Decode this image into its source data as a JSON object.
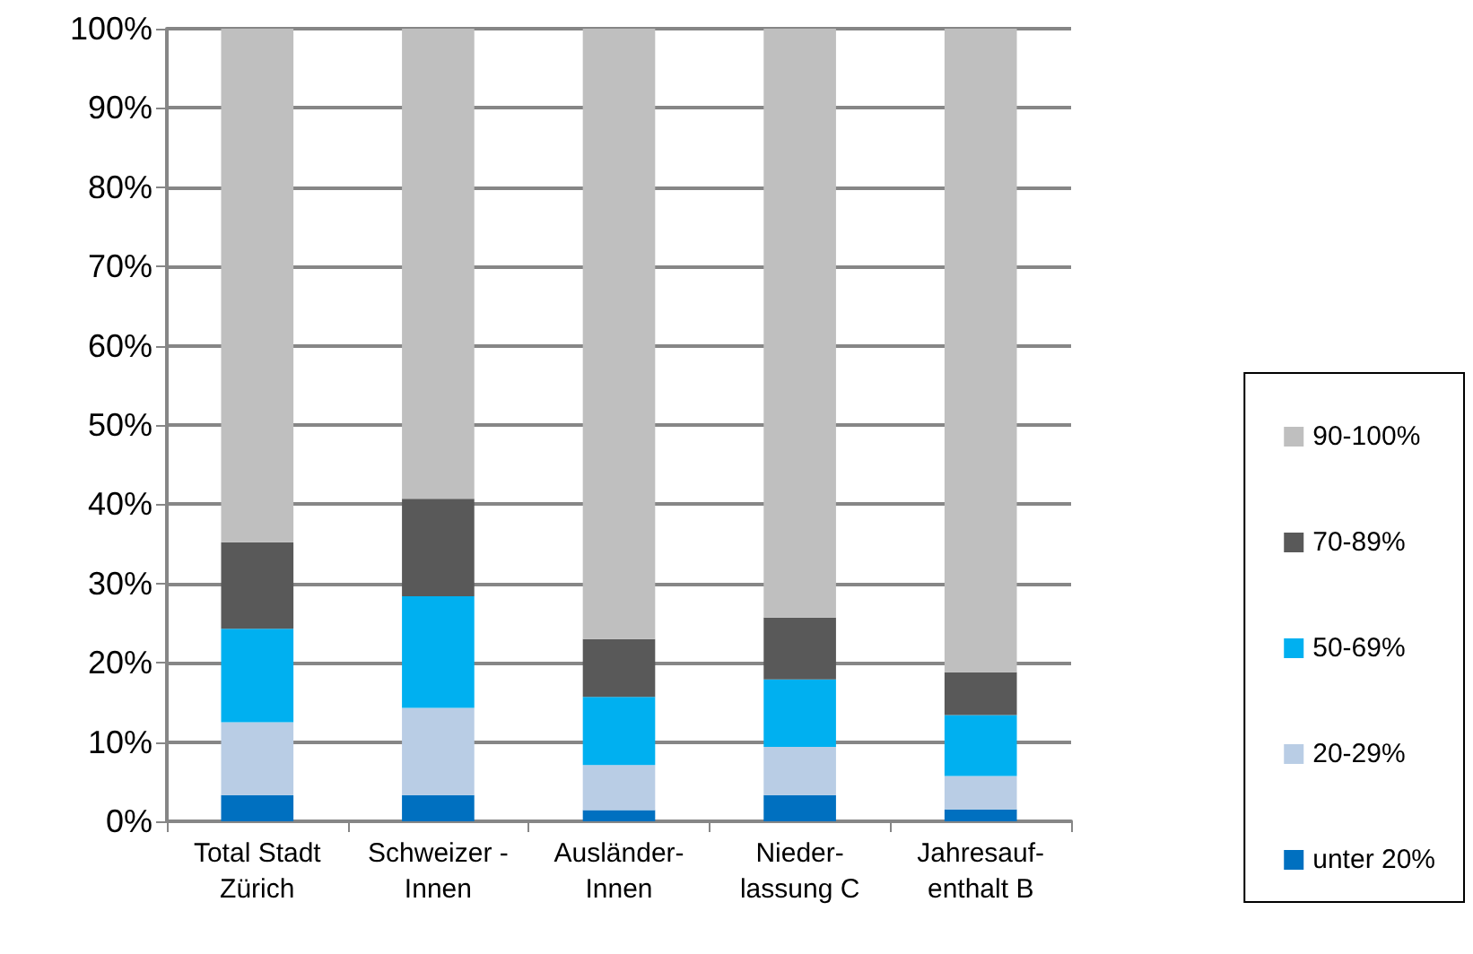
{
  "chart_data": {
    "type": "bar",
    "stacked": true,
    "categories": [
      "Total Stadt\nZürich",
      "Schweizer -\nInnen",
      "Ausländer-\nInnen",
      "Nieder-\nlassung C",
      "Jahresauf-\nenthalt B"
    ],
    "series": [
      {
        "name": "unter 20%",
        "color": "#0070c0",
        "values": [
          3.3,
          3.3,
          1.4,
          3.3,
          1.5
        ]
      },
      {
        "name": "20-29%",
        "color": "#b9cde5",
        "values": [
          9.2,
          11.0,
          5.7,
          6.1,
          4.2
        ]
      },
      {
        "name": "50-69%",
        "color": "#00b0f0",
        "values": [
          11.8,
          14.1,
          8.6,
          8.5,
          7.7
        ]
      },
      {
        "name": "70-89%",
        "color": "#595959",
        "values": [
          10.9,
          12.3,
          7.3,
          7.8,
          5.4
        ]
      },
      {
        "name": "90-100%",
        "color": "#bfbfbf",
        "values": [
          64.8,
          59.3,
          77.0,
          74.3,
          81.2
        ]
      }
    ],
    "ylim": [
      0,
      100
    ],
    "yticks": [
      {
        "value": 0,
        "label": "0%"
      },
      {
        "value": 10,
        "label": "10%"
      },
      {
        "value": 20,
        "label": "20%"
      },
      {
        "value": 30,
        "label": "30%"
      },
      {
        "value": 40,
        "label": "40%"
      },
      {
        "value": 50,
        "label": "50%"
      },
      {
        "value": 60,
        "label": "60%"
      },
      {
        "value": 70,
        "label": "70%"
      },
      {
        "value": 80,
        "label": "80%"
      },
      {
        "value": 90,
        "label": "90%"
      },
      {
        "value": 100,
        "label": "100%"
      }
    ],
    "grid": "y",
    "legend": "right"
  }
}
